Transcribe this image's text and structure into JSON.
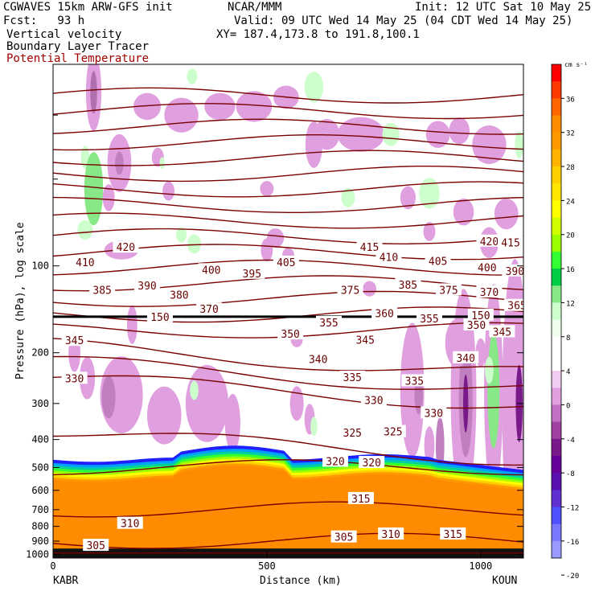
{
  "header": {
    "title": "CGWAVES 15km ARW-GFS init",
    "org": "NCAR/MMM",
    "init": "Init: 12 UTC Sat 10 May 25",
    "fcst": "Fcst:   93 h",
    "valid": "Valid: 09 UTC Wed 14 May 25 (04 CDT Wed 14 May 25)",
    "field1": "Vertical velocity",
    "xy": "XY= 187.4,173.8 to 191.8,100.1",
    "field2": "Boundary Layer Tracer",
    "field3": "Potential Temperature"
  },
  "chart_data": {
    "type": "contour cross-section",
    "ylabel": "Pressure (hPa), log scale",
    "xlabel": "Distance (km)",
    "x_ticks": [
      "0",
      "500",
      "1000"
    ],
    "xlim": [
      0,
      1100
    ],
    "y_ticks": [
      "100",
      "200",
      "300",
      "400",
      "500",
      "600",
      "700",
      "800",
      "900",
      "1000"
    ],
    "ylim": [
      1030,
      20
    ],
    "left_endpoint": "KABR",
    "right_endpoint": "KOUN",
    "colorbar": {
      "unit": "cm s⁻¹",
      "labels": [
        "36",
        "32",
        "28",
        "24",
        "20",
        "16",
        "12",
        "8",
        "4",
        "0",
        "-4",
        "-8",
        "-12",
        "-16",
        "-20"
      ],
      "colors": [
        "#ff0000",
        "#ff3a00",
        "#ff6600",
        "#ff8c00",
        "#ff9900",
        "#ffb300",
        "#ffd000",
        "#ffe600",
        "#ffff00",
        "#d2ff00",
        "#9bff00",
        "#33ff33",
        "#00cc44",
        "#88e888",
        "#ccffcc",
        "#eeffee",
        "#ffffff",
        "#ffffff",
        "#f0ccf0",
        "#e0a0e0",
        "#c070c0",
        "#a040a0",
        "#7a1a8a",
        "#66009a",
        "#5a10b0",
        "#6030d0",
        "#5050ff",
        "#7777ff",
        "#9999ff"
      ]
    },
    "theta_labels": [
      {
        "v": 420,
        "x": 170,
        "p": 86
      },
      {
        "v": 415,
        "x": 740,
        "p": 86
      },
      {
        "v": 420,
        "x": 1020,
        "p": 82
      },
      {
        "v": 415,
        "x": 1070,
        "p": 83
      },
      {
        "v": 410,
        "x": 75,
        "p": 97
      },
      {
        "v": 400,
        "x": 370,
        "p": 103
      },
      {
        "v": 405,
        "x": 545,
        "p": 97
      },
      {
        "v": 410,
        "x": 785,
        "p": 93
      },
      {
        "v": 405,
        "x": 900,
        "p": 96
      },
      {
        "v": 400,
        "x": 1015,
        "p": 101
      },
      {
        "v": 395,
        "x": 465,
        "p": 106
      },
      {
        "v": 390,
        "x": 1080,
        "p": 104
      },
      {
        "v": 390,
        "x": 220,
        "p": 117
      },
      {
        "v": 385,
        "x": 115,
        "p": 121
      },
      {
        "v": 380,
        "x": 295,
        "p": 126
      },
      {
        "v": 375,
        "x": 695,
        "p": 121
      },
      {
        "v": 385,
        "x": 830,
        "p": 116
      },
      {
        "v": 375,
        "x": 925,
        "p": 121
      },
      {
        "v": 370,
        "x": 1020,
        "p": 123
      },
      {
        "v": 370,
        "x": 365,
        "p": 141
      },
      {
        "v": 365,
        "x": 1085,
        "p": 137
      },
      {
        "v": 360,
        "x": 775,
        "p": 146
      },
      {
        "v": 355,
        "x": 645,
        "p": 157
      },
      {
        "v": 355,
        "x": 880,
        "p": 152
      },
      {
        "v": 350,
        "x": 990,
        "p": 160
      },
      {
        "v": 345,
        "x": 1050,
        "p": 169
      },
      {
        "v": 350,
        "x": 555,
        "p": 172
      },
      {
        "v": 345,
        "x": 730,
        "p": 180
      },
      {
        "v": 345,
        "x": 50,
        "p": 181
      },
      {
        "v": 340,
        "x": 620,
        "p": 210
      },
      {
        "v": 340,
        "x": 965,
        "p": 208
      },
      {
        "v": 330,
        "x": 50,
        "p": 245
      },
      {
        "v": 335,
        "x": 700,
        "p": 243
      },
      {
        "v": 335,
        "x": 845,
        "p": 250
      },
      {
        "v": 330,
        "x": 750,
        "p": 292
      },
      {
        "v": 330,
        "x": 890,
        "p": 323
      },
      {
        "v": 325,
        "x": 700,
        "p": 378
      },
      {
        "v": 325,
        "x": 795,
        "p": 375
      },
      {
        "v": 320,
        "x": 660,
        "p": 475
      },
      {
        "v": 320,
        "x": 745,
        "p": 480
      },
      {
        "v": 315,
        "x": 720,
        "p": 640
      },
      {
        "v": 310,
        "x": 180,
        "p": 780
      },
      {
        "v": 305,
        "x": 100,
        "p": 930
      },
      {
        "v": 305,
        "x": 680,
        "p": 870
      },
      {
        "v": 310,
        "x": 790,
        "p": 850
      },
      {
        "v": 315,
        "x": 935,
        "p": 850
      }
    ],
    "tracer_marker_labels": [
      {
        "v": 150,
        "x": 250,
        "p": 150
      },
      {
        "v": 150,
        "x": 1000,
        "p": 148
      }
    ]
  }
}
